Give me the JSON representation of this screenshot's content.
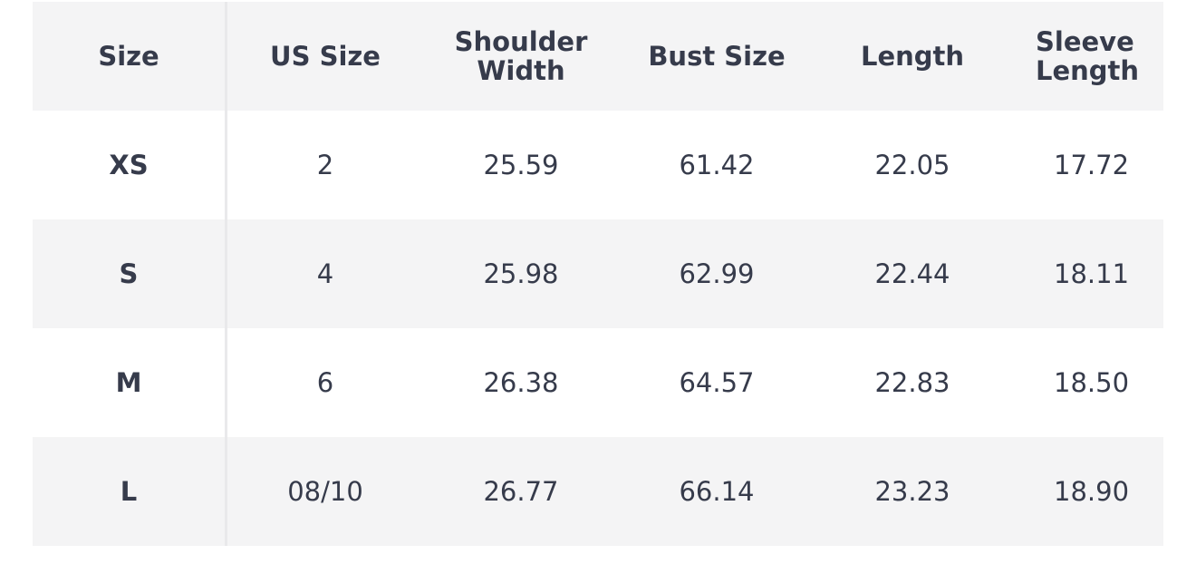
{
  "table": {
    "headers": [
      "Size",
      "US Size",
      "Shoulder Width",
      "Bust Size",
      "Length",
      "Sleeve Length"
    ],
    "rows": [
      [
        "XS",
        "2",
        "25.59",
        "61.42",
        "22.05",
        "17.72"
      ],
      [
        "S",
        "4",
        "25.98",
        "62.99",
        "22.44",
        "18.11"
      ],
      [
        "M",
        "6",
        "26.38",
        "64.57",
        "22.83",
        "18.50"
      ],
      [
        "L",
        "08/10",
        "26.77",
        "66.14",
        "23.23",
        "18.90"
      ]
    ]
  }
}
